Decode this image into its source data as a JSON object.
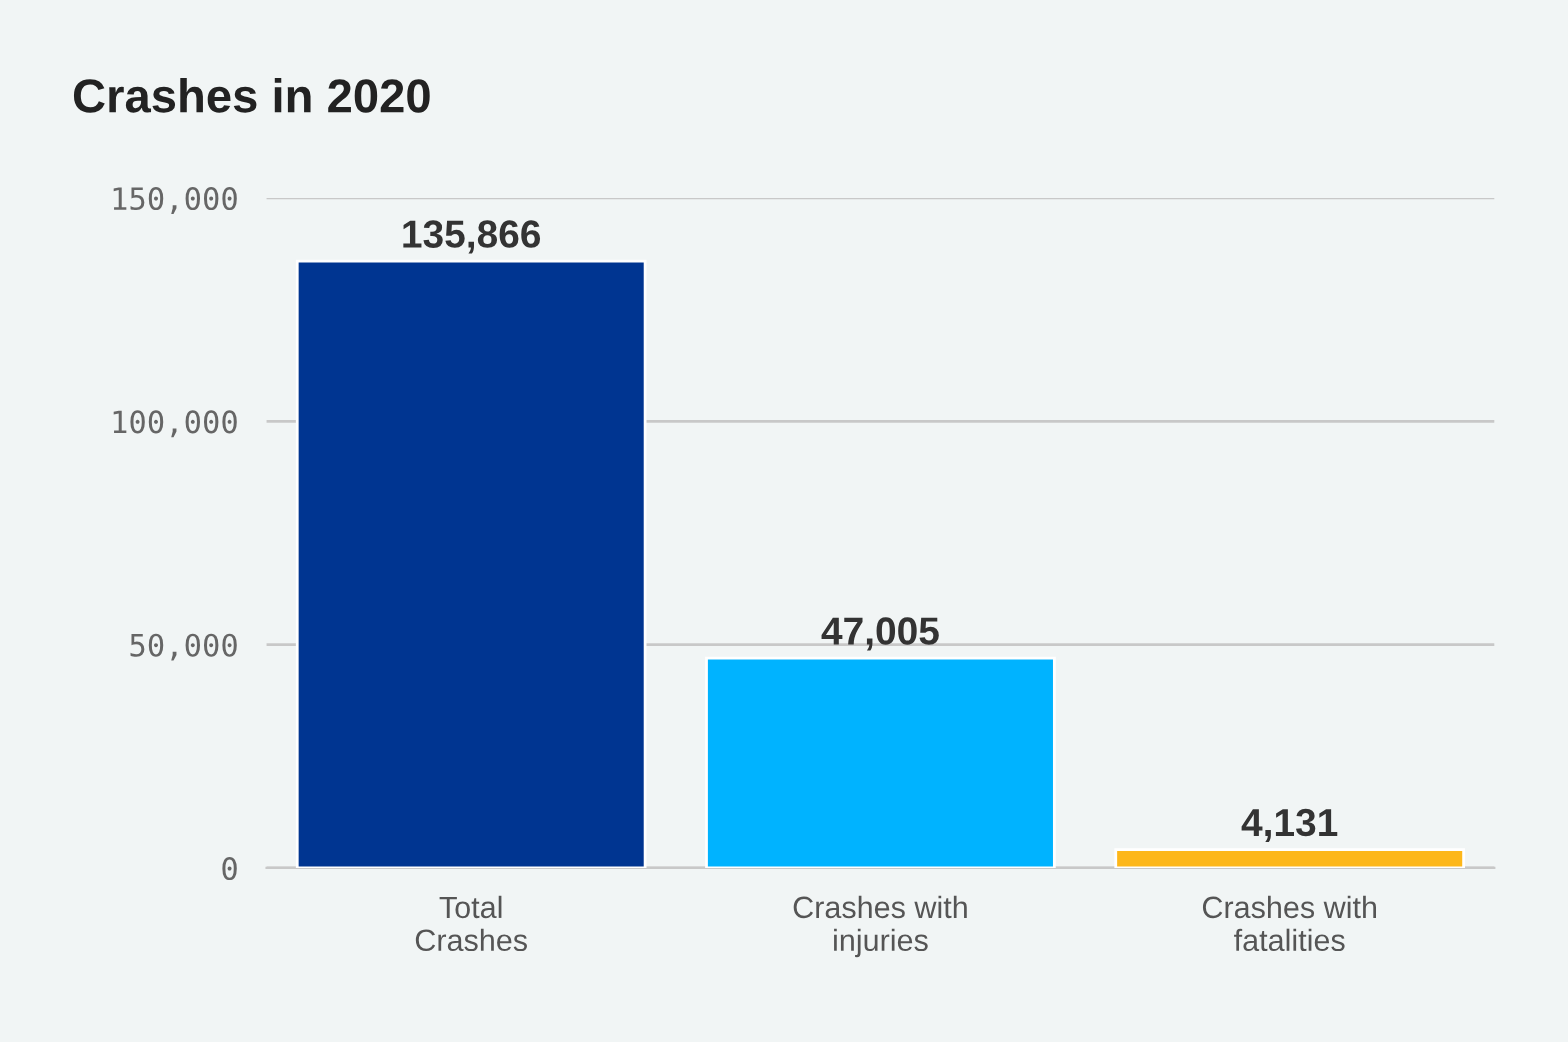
{
  "chart_data": {
    "type": "bar",
    "title": "Crashes in 2020",
    "categories": [
      "Total\nCrashes",
      "Crashes with\ninjuries",
      "Crashes with\nfatalities"
    ],
    "values": [
      135866,
      47005,
      4131
    ],
    "colors": [
      "#003591",
      "#00b3ff",
      "#fdb71a"
    ],
    "value_labels": [
      "135,866",
      "47,005",
      "4,131"
    ],
    "ylim": [
      0,
      150000
    ],
    "yticks": [
      {
        "value": 0,
        "label": "0"
      },
      {
        "value": 50000,
        "label": "50,000"
      },
      {
        "value": 100000,
        "label": "100,000"
      },
      {
        "value": 150000,
        "label": "150,000"
      }
    ],
    "grid": "y",
    "legend": false
  }
}
